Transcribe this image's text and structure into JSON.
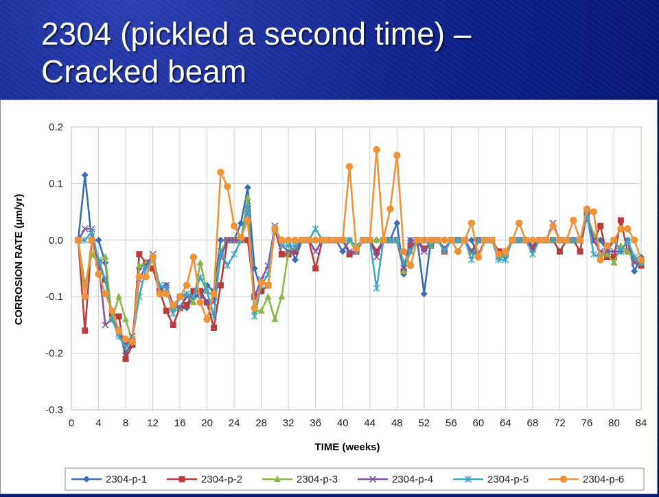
{
  "slide": {
    "title_line1": "2304 (pickled a second time) –",
    "title_line2": "Cracked beam"
  },
  "chart_data": {
    "type": "line",
    "title": "",
    "xlabel": "TIME (weeks)",
    "ylabel": "CORROSION RATE (µm/yr)",
    "xlim": [
      0,
      84
    ],
    "ylim": [
      -0.3,
      0.2
    ],
    "x_ticks": [
      0,
      4,
      8,
      12,
      16,
      20,
      24,
      28,
      32,
      36,
      40,
      44,
      48,
      52,
      56,
      60,
      64,
      68,
      72,
      76,
      80,
      84
    ],
    "y_ticks": [
      0.2,
      0.1,
      0.0,
      -0.1,
      -0.2,
      -0.3
    ],
    "y_tick_labels": [
      "0.2",
      "0.1",
      "0.0",
      "-0.1",
      "-0.2",
      "-0.3"
    ],
    "grid": true,
    "legend_position": "bottom",
    "x": [
      1,
      2,
      3,
      4,
      5,
      6,
      7,
      8,
      9,
      10,
      11,
      12,
      13,
      14,
      15,
      16,
      17,
      18,
      19,
      20,
      21,
      22,
      23,
      24,
      25,
      26,
      27,
      28,
      29,
      30,
      31,
      32,
      33,
      34,
      35,
      36,
      37,
      38,
      39,
      40,
      41,
      42,
      43,
      44,
      45,
      46,
      47,
      48,
      49,
      50,
      51,
      52,
      53,
      54,
      55,
      56,
      57,
      58,
      59,
      60,
      61,
      62,
      63,
      64,
      65,
      66,
      67,
      68,
      69,
      70,
      71,
      72,
      73,
      74,
      75,
      76,
      77,
      78,
      79,
      80,
      81,
      82,
      83,
      84
    ],
    "series": [
      {
        "name": "2304-p-1",
        "color": "#3a6eb4",
        "marker": "diamond",
        "values": [
          0,
          0.115,
          0,
          0,
          -0.04,
          -0.14,
          -0.16,
          -0.2,
          -0.18,
          -0.05,
          -0.04,
          -0.03,
          -0.09,
          -0.08,
          -0.12,
          -0.12,
          -0.12,
          -0.1,
          -0.1,
          -0.08,
          -0.09,
          0,
          0,
          0,
          0.03,
          0.093,
          -0.05,
          -0.09,
          -0.08,
          0.02,
          0,
          0,
          -0.035,
          0,
          0,
          0,
          0,
          0,
          0,
          -0.02,
          0,
          -0.02,
          0,
          0,
          0,
          0,
          0,
          0.03,
          -0.06,
          0,
          0,
          -0.095,
          0,
          0,
          0,
          0,
          0,
          0,
          0,
          -0.03,
          0,
          0,
          -0.03,
          -0.03,
          0,
          0,
          0,
          0,
          0,
          0,
          0,
          0,
          0,
          0,
          0,
          0.04,
          0,
          0,
          -0.02,
          0,
          -0.02,
          0,
          -0.055,
          -0.03
        ]
      },
      {
        "name": "2304-p-2",
        "color": "#b83c3a",
        "marker": "square",
        "values": [
          0,
          -0.16,
          0,
          -0.04,
          -0.07,
          -0.13,
          -0.135,
          -0.21,
          -0.185,
          -0.025,
          -0.04,
          -0.05,
          -0.09,
          -0.125,
          -0.15,
          -0.12,
          -0.115,
          -0.09,
          -0.09,
          -0.11,
          -0.155,
          -0.08,
          0,
          0,
          0,
          0,
          -0.1,
          -0.09,
          -0.08,
          0.02,
          -0.025,
          -0.025,
          -0.02,
          0,
          0,
          -0.05,
          0,
          0,
          0,
          0,
          -0.025,
          -0.02,
          0,
          0,
          -0.02,
          0,
          0,
          0,
          -0.055,
          -0.01,
          0,
          -0.015,
          -0.01,
          0,
          -0.02,
          0,
          0,
          0,
          -0.02,
          0,
          0,
          0,
          -0.02,
          -0.025,
          0,
          0,
          0,
          -0.015,
          0,
          0,
          0,
          -0.02,
          0,
          0,
          -0.02,
          0.05,
          0,
          0.025,
          -0.03,
          -0.03,
          0.035,
          -0.02,
          -0.035,
          -0.045
        ]
      },
      {
        "name": "2304-p-3",
        "color": "#8db64a",
        "marker": "triangle",
        "values": [
          0,
          -0.08,
          -0.025,
          -0.04,
          -0.03,
          -0.14,
          -0.1,
          -0.14,
          -0.18,
          -0.045,
          -0.04,
          -0.035,
          -0.09,
          -0.09,
          -0.12,
          -0.12,
          -0.095,
          -0.11,
          -0.04,
          -0.09,
          -0.1,
          -0.02,
          0,
          0,
          0,
          0.075,
          -0.125,
          -0.125,
          -0.1,
          -0.14,
          -0.1,
          -0.02,
          -0.015,
          0,
          0,
          0,
          0,
          0,
          0,
          0,
          0,
          -0.02,
          0,
          0,
          0,
          0,
          0,
          0,
          -0.055,
          -0.02,
          0,
          0,
          -0.01,
          0,
          -0.015,
          0,
          0,
          0,
          -0.02,
          -0.03,
          0,
          0,
          -0.03,
          -0.025,
          0,
          0,
          0,
          0,
          0,
          0,
          0,
          0,
          0,
          0,
          0,
          0.045,
          0.01,
          -0.03,
          -0.025,
          -0.04,
          -0.01,
          -0.02,
          -0.035,
          -0.04
        ]
      },
      {
        "name": "2304-p-4",
        "color": "#7b55a3",
        "marker": "x",
        "values": [
          0,
          0.02,
          0.02,
          -0.04,
          -0.15,
          -0.14,
          -0.165,
          -0.185,
          -0.17,
          -0.07,
          -0.045,
          -0.025,
          -0.085,
          -0.08,
          -0.115,
          -0.12,
          -0.1,
          -0.1,
          -0.095,
          -0.11,
          -0.11,
          -0.03,
          0,
          0,
          0,
          0.055,
          -0.1,
          -0.07,
          -0.045,
          0.025,
          -0.01,
          -0.02,
          -0.02,
          0,
          0,
          -0.02,
          0,
          0,
          0,
          0,
          -0.02,
          -0.02,
          0,
          0,
          -0.03,
          0,
          0,
          0,
          -0.05,
          0,
          0,
          -0.02,
          0,
          0,
          -0.015,
          0,
          0,
          0,
          -0.02,
          -0.025,
          0,
          0,
          -0.03,
          -0.02,
          0,
          0,
          0,
          -0.01,
          0,
          0,
          0.03,
          0,
          0,
          0,
          0,
          0.04,
          0,
          -0.02,
          -0.02,
          -0.02,
          -0.02,
          0,
          -0.04,
          -0.04
        ]
      },
      {
        "name": "2304-p-5",
        "color": "#3fa6c4",
        "marker": "star",
        "values": [
          0,
          0,
          0.015,
          -0.035,
          -0.07,
          -0.14,
          -0.17,
          -0.19,
          -0.175,
          -0.1,
          -0.05,
          -0.03,
          -0.08,
          -0.085,
          -0.13,
          -0.1,
          -0.095,
          -0.1,
          -0.065,
          -0.09,
          -0.135,
          -0.02,
          -0.045,
          -0.025,
          0,
          0.06,
          -0.135,
          -0.08,
          -0.06,
          0.02,
          -0.01,
          -0.01,
          -0.01,
          0,
          0,
          0.02,
          0,
          0,
          0,
          0,
          0,
          -0.01,
          0,
          0,
          -0.085,
          0,
          0,
          0,
          -0.04,
          -0.02,
          0,
          0,
          -0.01,
          0,
          -0.02,
          0,
          0,
          0,
          -0.035,
          0,
          0,
          0,
          -0.035,
          -0.035,
          0,
          0,
          0,
          -0.025,
          0,
          0,
          0,
          0,
          0,
          0,
          0,
          0.045,
          -0.025,
          -0.03,
          -0.01,
          0,
          -0.02,
          0,
          -0.03,
          -0.04
        ]
      },
      {
        "name": "2304-p-6",
        "color": "#f0923a",
        "marker": "circle",
        "values": [
          0,
          -0.1,
          0,
          -0.06,
          -0.095,
          -0.125,
          -0.16,
          -0.175,
          -0.18,
          -0.065,
          -0.065,
          -0.03,
          -0.095,
          -0.095,
          -0.115,
          -0.1,
          -0.08,
          -0.03,
          -0.11,
          -0.14,
          -0.095,
          0.12,
          0.095,
          0.025,
          0.005,
          0.035,
          -0.12,
          -0.075,
          -0.08,
          0.02,
          0,
          0,
          0,
          0,
          0,
          0,
          0,
          0,
          0,
          0,
          0.13,
          -0.015,
          0,
          0,
          0.16,
          0,
          0.055,
          0.15,
          -0.02,
          -0.045,
          0,
          0,
          0,
          0,
          0,
          0,
          -0.02,
          0,
          0.03,
          -0.03,
          0,
          0,
          -0.025,
          -0.02,
          0,
          0.03,
          0,
          0,
          0,
          0,
          0.025,
          0,
          0,
          0.035,
          0,
          0.055,
          0.05,
          -0.035,
          -0.01,
          0,
          0.02,
          0.02,
          0,
          -0.035
        ]
      }
    ]
  }
}
